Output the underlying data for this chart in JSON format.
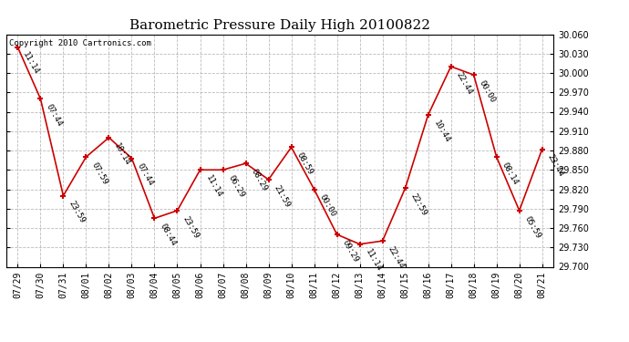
{
  "title": "Barometric Pressure Daily High 20100822",
  "copyright": "Copyright 2010 Cartronics.com",
  "x_labels": [
    "07/29",
    "07/30",
    "07/31",
    "08/01",
    "08/02",
    "08/03",
    "08/04",
    "08/05",
    "08/06",
    "08/07",
    "08/08",
    "08/09",
    "08/10",
    "08/11",
    "08/12",
    "08/13",
    "08/14",
    "08/15",
    "08/16",
    "08/17",
    "08/18",
    "08/19",
    "08/20",
    "08/21"
  ],
  "y_values": [
    30.04,
    29.96,
    29.81,
    29.87,
    29.9,
    29.868,
    29.775,
    29.787,
    29.85,
    29.85,
    29.86,
    29.835,
    29.885,
    29.82,
    29.75,
    29.735,
    29.74,
    29.822,
    29.935,
    30.01,
    29.997,
    29.87,
    29.787,
    29.882
  ],
  "point_labels": [
    "11:14",
    "07:44",
    "23:59",
    "07:59",
    "10:14",
    "07:44",
    "08:44",
    "23:59",
    "11:14",
    "06:29",
    "08:29",
    "21:59",
    "08:59",
    "00:00",
    "09:29",
    "11:14",
    "22:44",
    "22:59",
    "10:44",
    "22:44",
    "00:00",
    "08:14",
    "05:59",
    "23:44"
  ],
  "ylim_min": 29.7,
  "ylim_max": 30.06,
  "ytick_step": 0.03,
  "line_color": "#cc0000",
  "marker_color": "#cc0000",
  "background_color": "#ffffff",
  "grid_color": "#aaaaaa",
  "title_fontsize": 11,
  "label_fontsize": 6.5,
  "tick_fontsize": 7,
  "copyright_fontsize": 6.5
}
